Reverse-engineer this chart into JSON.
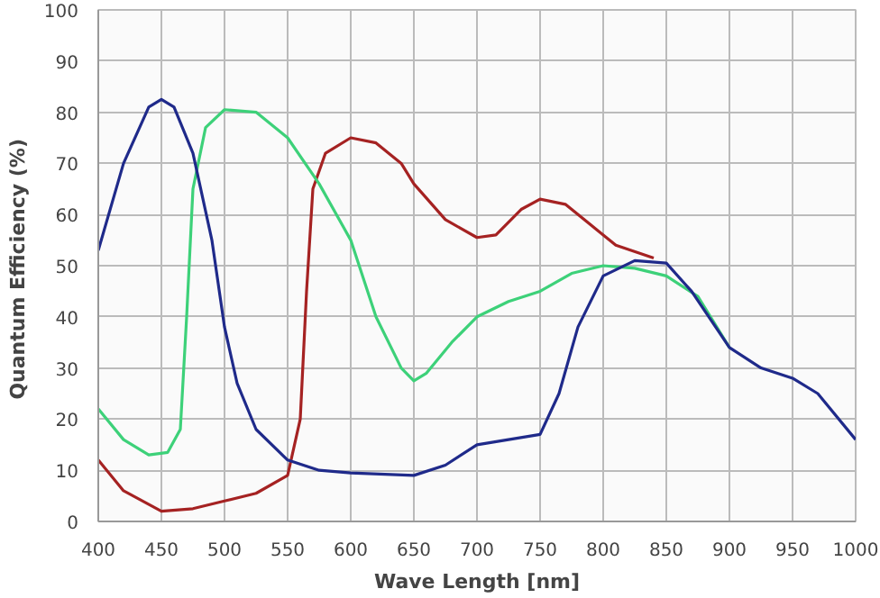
{
  "chart_data": {
    "type": "line",
    "xlabel": "Wave Length [nm]",
    "ylabel": "Quantum Efficiency  (%)",
    "xlim": [
      400,
      1000
    ],
    "ylim": [
      0,
      100
    ],
    "xticks": [
      400,
      450,
      500,
      550,
      600,
      650,
      700,
      750,
      800,
      850,
      900,
      950,
      1000
    ],
    "yticks": [
      0,
      10,
      20,
      30,
      40,
      50,
      60,
      70,
      80,
      90,
      100
    ],
    "grid": true,
    "series": [
      {
        "color": "#a52222",
        "x": [
          400,
          420,
          450,
          475,
          500,
          525,
          550,
          560,
          565,
          570,
          580,
          600,
          620,
          640,
          650,
          675,
          700,
          715,
          735,
          750,
          770,
          790,
          810,
          840
        ],
        "values": [
          12,
          6,
          2,
          2.5,
          4,
          5.5,
          9,
          20,
          45,
          65,
          72,
          75,
          74,
          70,
          66,
          59,
          55.5,
          56,
          61,
          63,
          62,
          58,
          54,
          51.5
        ]
      },
      {
        "color": "#3dd179",
        "x": [
          400,
          420,
          440,
          455,
          465,
          470,
          475,
          485,
          500,
          525,
          550,
          575,
          600,
          620,
          640,
          650,
          660,
          680,
          700,
          725,
          750,
          775,
          800,
          825,
          850,
          875,
          900
        ],
        "values": [
          22,
          16,
          13,
          13.5,
          18,
          40,
          65,
          77,
          80.5,
          80,
          75,
          66,
          55,
          40,
          30,
          27.5,
          29,
          35,
          40,
          43,
          45,
          48.5,
          50,
          49.5,
          48,
          44,
          34
        ]
      },
      {
        "color": "#1f2a8a",
        "x": [
          400,
          420,
          440,
          450,
          460,
          475,
          490,
          500,
          510,
          525,
          550,
          575,
          600,
          650,
          675,
          700,
          725,
          750,
          765,
          780,
          800,
          825,
          850,
          870,
          900,
          925,
          950,
          970,
          1000
        ],
        "values": [
          53,
          70,
          81,
          82.5,
          81,
          72,
          55,
          38,
          27,
          18,
          12,
          10,
          9.5,
          9,
          11,
          15,
          16,
          17,
          25,
          38,
          48,
          51,
          50.5,
          45,
          34,
          30,
          28,
          25,
          16
        ]
      }
    ]
  }
}
